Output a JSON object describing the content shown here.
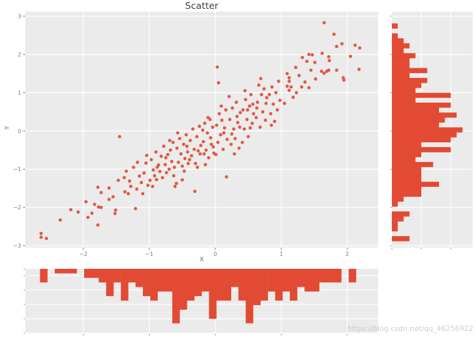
{
  "title": "Scatter",
  "watermark": {
    "text": "https://blog.csdn.net/qq_46256922"
  },
  "chart_data": {
    "type": "scatter",
    "style": "ggplot",
    "title": "Scatter",
    "xlabel": "X",
    "ylabel": "Y",
    "grid": true,
    "point_color": "#E24A33",
    "panel_color": "#EBEBEB",
    "grid_color": "#FFFFFF",
    "tick_color": "#7a7a7a",
    "x_axis": {
      "tick_labels": [
        "−2",
        "−1",
        "0",
        "1",
        "2"
      ],
      "tick_values": [
        -2,
        -1,
        0,
        1,
        2
      ],
      "range": [
        -2.88,
        2.47
      ]
    },
    "y_axis": {
      "tick_labels": [
        "3",
        "2",
        "1",
        "0",
        "−1",
        "−2",
        "−3"
      ],
      "tick_values": [
        3,
        2,
        1,
        0,
        -1,
        -2,
        -3
      ],
      "range": [
        -3.05,
        3.12
      ]
    },
    "points": [
      [
        -2.64,
        -2.68
      ],
      [
        -2.64,
        -2.78
      ],
      [
        -2.56,
        -2.81
      ],
      [
        -2.35,
        -2.33
      ],
      [
        -2.19,
        -2.06
      ],
      [
        -2.08,
        -2.12
      ],
      [
        -1.93,
        -2.26
      ],
      [
        -1.87,
        -2.15
      ],
      [
        -1.96,
        -1.85
      ],
      [
        -1.83,
        -1.92
      ],
      [
        -1.78,
        -2.46
      ],
      [
        -1.77,
        -1.99
      ],
      [
        -1.73,
        -2.0
      ],
      [
        -1.78,
        -1.47
      ],
      [
        -1.73,
        -1.61
      ],
      [
        -1.61,
        -1.79
      ],
      [
        -1.61,
        -1.49
      ],
      [
        -1.52,
        -2.16
      ],
      [
        -1.51,
        -2.07
      ],
      [
        -1.47,
        -1.29
      ],
      [
        -1.45,
        -0.15
      ],
      [
        -1.55,
        -1.72
      ],
      [
        -1.37,
        -1.59
      ],
      [
        -1.32,
        -1.64
      ],
      [
        -1.3,
        -1.31
      ],
      [
        -1.21,
        -2.03
      ],
      [
        -1.35,
        -1.05
      ],
      [
        -1.28,
        -1.45
      ],
      [
        -1.24,
        -0.95
      ],
      [
        -1.38,
        -1.22
      ],
      [
        -1.1,
        -1.64
      ],
      [
        -1.08,
        -1.1
      ],
      [
        -1.18,
        -0.82
      ],
      [
        -1.12,
        -1.35
      ],
      [
        -1.05,
        -0.84
      ],
      [
        -1.15,
        -1.18
      ],
      [
        -1.02,
        -1.42
      ],
      [
        -1.19,
        -1.52
      ],
      [
        -1.04,
        -0.64
      ],
      [
        -0.99,
        -1.29
      ],
      [
        -0.89,
        -1.27
      ],
      [
        -0.92,
        -1.17
      ],
      [
        -0.8,
        -1.22
      ],
      [
        -0.97,
        -0.75
      ],
      [
        -0.94,
        -1.02
      ],
      [
        -0.9,
        -0.55
      ],
      [
        -0.86,
        -0.89
      ],
      [
        -0.84,
        -1.06
      ],
      [
        -0.82,
        -0.66
      ],
      [
        -0.95,
        -1.45
      ],
      [
        -0.88,
        -0.95
      ],
      [
        -0.74,
        -1.09
      ],
      [
        -0.63,
        -1.17
      ],
      [
        -0.61,
        -1.45
      ],
      [
        -0.78,
        -0.4
      ],
      [
        -0.76,
        -0.88
      ],
      [
        -0.72,
        -0.62
      ],
      [
        -0.7,
        -1.0
      ],
      [
        -0.68,
        -0.5
      ],
      [
        -0.66,
        -0.8
      ],
      [
        -0.64,
        -0.3
      ],
      [
        -0.62,
        -0.95
      ],
      [
        -0.75,
        -0.7
      ],
      [
        -0.69,
        -0.25
      ],
      [
        -0.59,
        -1.37
      ],
      [
        -0.5,
        -1.28
      ],
      [
        -0.58,
        -0.45
      ],
      [
        -0.56,
        -0.82
      ],
      [
        -0.54,
        -0.2
      ],
      [
        -0.52,
        -0.6
      ],
      [
        -0.5,
        -0.92
      ],
      [
        -0.48,
        -0.35
      ],
      [
        -0.46,
        -0.72
      ],
      [
        -0.44,
        -0.1
      ],
      [
        -0.42,
        -0.55
      ],
      [
        -0.41,
        -0.85
      ],
      [
        -0.57,
        -0.05
      ],
      [
        -0.47,
        -1.05
      ],
      [
        -0.43,
        -0.4
      ],
      [
        -0.31,
        -1.58
      ],
      [
        -0.38,
        -0.25
      ],
      [
        -0.36,
        -0.65
      ],
      [
        -0.34,
        0.05
      ],
      [
        -0.32,
        -0.48
      ],
      [
        -0.3,
        -0.85
      ],
      [
        -0.28,
        -0.15
      ],
      [
        -0.26,
        -0.52
      ],
      [
        -0.24,
        0.12
      ],
      [
        -0.22,
        -0.38
      ],
      [
        -0.39,
        -0.75
      ],
      [
        -0.27,
        -0.95
      ],
      [
        -0.23,
        -0.6
      ],
      [
        -0.18,
        -0.28
      ],
      [
        -0.16,
        0.2
      ],
      [
        -0.14,
        -0.5
      ],
      [
        -0.12,
        -0.05
      ],
      [
        -0.1,
        -0.7
      ],
      [
        -0.08,
        0.3
      ],
      [
        -0.06,
        -0.35
      ],
      [
        -0.04,
        0.1
      ],
      [
        -0.02,
        -0.58
      ],
      [
        -0.19,
        0.02
      ],
      [
        -0.15,
        -0.88
      ],
      [
        -0.11,
        0.35
      ],
      [
        -0.07,
        -0.18
      ],
      [
        -0.03,
        -0.42
      ],
      [
        -0.17,
        -0.6
      ],
      [
        0.03,
        1.67
      ],
      [
        0.05,
        1.26
      ],
      [
        0.17,
        -1.2
      ],
      [
        0.02,
        0.15
      ],
      [
        0.04,
        -0.3
      ],
      [
        0.06,
        0.45
      ],
      [
        0.08,
        -0.1
      ],
      [
        0.1,
        0.28
      ],
      [
        0.12,
        -0.48
      ],
      [
        0.14,
        0.08
      ],
      [
        0.16,
        0.55
      ],
      [
        0.18,
        -0.22
      ],
      [
        0.01,
        -0.62
      ],
      [
        0.09,
        0.65
      ],
      [
        0.13,
        -0.05
      ],
      [
        0.22,
        0.3
      ],
      [
        0.24,
        -0.35
      ],
      [
        0.26,
        0.6
      ],
      [
        0.28,
        0.05
      ],
      [
        0.3,
        -0.2
      ],
      [
        0.32,
        0.75
      ],
      [
        0.34,
        0.22
      ],
      [
        0.36,
        -0.45
      ],
      [
        0.38,
        0.48
      ],
      [
        0.21,
        0.9
      ],
      [
        0.25,
        -0.08
      ],
      [
        0.33,
        0.38
      ],
      [
        0.37,
        0.1
      ],
      [
        0.29,
        -0.6
      ],
      [
        0.42,
        0.55
      ],
      [
        0.44,
        0.05
      ],
      [
        0.46,
        0.82
      ],
      [
        0.48,
        0.3
      ],
      [
        0.5,
        -0.15
      ],
      [
        0.52,
        0.65
      ],
      [
        0.54,
        0.95
      ],
      [
        0.56,
        0.2
      ],
      [
        0.58,
        0.45
      ],
      [
        0.41,
        -0.3
      ],
      [
        0.45,
        1.05
      ],
      [
        0.53,
        0.08
      ],
      [
        0.57,
        0.7
      ],
      [
        0.49,
        0.55
      ],
      [
        0.69,
        1.37
      ],
      [
        0.66,
        1.2
      ],
      [
        0.78,
        0.87
      ],
      [
        0.62,
        0.35
      ],
      [
        0.64,
        0.75
      ],
      [
        0.68,
        0.1
      ],
      [
        0.7,
        0.95
      ],
      [
        0.72,
        0.5
      ],
      [
        0.74,
        1.1
      ],
      [
        0.76,
        0.28
      ],
      [
        0.63,
        0.6
      ],
      [
        0.77,
        0.72
      ],
      [
        0.82,
        0.95
      ],
      [
        0.84,
        0.45
      ],
      [
        0.86,
        1.15
      ],
      [
        0.88,
        0.7
      ],
      [
        0.9,
        0.25
      ],
      [
        0.92,
        1.0
      ],
      [
        0.94,
        0.55
      ],
      [
        0.96,
        1.3
      ],
      [
        0.98,
        0.8
      ],
      [
        0.85,
        0.15
      ],
      [
        1.09,
        1.5
      ],
      [
        1.12,
        1.39
      ],
      [
        1.12,
        1.3
      ],
      [
        1.09,
        1.17
      ],
      [
        1.15,
        1.15
      ],
      [
        1.12,
        1.06
      ],
      [
        1.05,
        0.72
      ],
      [
        1.18,
        0.88
      ],
      [
        1.22,
        1.66
      ],
      [
        1.32,
        1.92
      ],
      [
        1.39,
        1.82
      ],
      [
        1.31,
        1.15
      ],
      [
        1.23,
        1.0
      ],
      [
        1.27,
        1.45
      ],
      [
        1.36,
        1.28
      ],
      [
        1.42,
        2.0
      ],
      [
        1.47,
        1.99
      ],
      [
        1.51,
        1.79
      ],
      [
        1.45,
        1.59
      ],
      [
        1.42,
        1.13
      ],
      [
        1.52,
        1.36
      ],
      [
        1.65,
        2.83
      ],
      [
        1.62,
        2.03
      ],
      [
        1.61,
        1.56
      ],
      [
        1.65,
        1.51
      ],
      [
        1.69,
        1.56
      ],
      [
        1.72,
        1.94
      ],
      [
        1.72,
        1.59
      ],
      [
        1.73,
        1.84
      ],
      [
        1.8,
        2.53
      ],
      [
        1.84,
        2.21
      ],
      [
        1.92,
        2.28
      ],
      [
        1.84,
        1.59
      ],
      [
        1.94,
        1.39
      ],
      [
        1.95,
        1.33
      ],
      [
        2.12,
        2.24
      ],
      [
        2.19,
        2.17
      ],
      [
        2.18,
        1.61
      ],
      [
        2.05,
        1.95
      ]
    ],
    "marginal_x_histogram": {
      "orientation": "down",
      "bin_start": -2.88,
      "bin_width": 0.1114,
      "axis_max": 14.3,
      "counts": [
        0,
        0,
        3,
        0,
        1,
        1,
        1,
        0,
        2,
        2,
        3,
        6,
        3,
        7,
        3,
        4,
        6,
        7,
        5,
        5,
        12,
        9,
        7,
        6,
        5,
        11,
        7,
        7,
        4,
        7,
        12,
        8,
        7,
        5,
        7,
        5,
        7,
        4,
        5,
        5,
        3,
        3,
        3,
        0,
        3,
        0,
        0,
        0
      ]
    },
    "marginal_y_histogram": {
      "orientation": "right",
      "bin_start": 2.81,
      "bin_width": 0.1293,
      "axis_max": 13.7,
      "gridline_counts": [
        5,
        10
      ],
      "counts": [
        1,
        0,
        1,
        2,
        3,
        2,
        4,
        3,
        3,
        6,
        3,
        6,
        5,
        4,
        10,
        4,
        10,
        8,
        11,
        9,
        8,
        12,
        11,
        10,
        5,
        10,
        5,
        4,
        7,
        5,
        5,
        5,
        8,
        5,
        5,
        2,
        1,
        0,
        3,
        2,
        1,
        1,
        0,
        3
      ]
    }
  }
}
